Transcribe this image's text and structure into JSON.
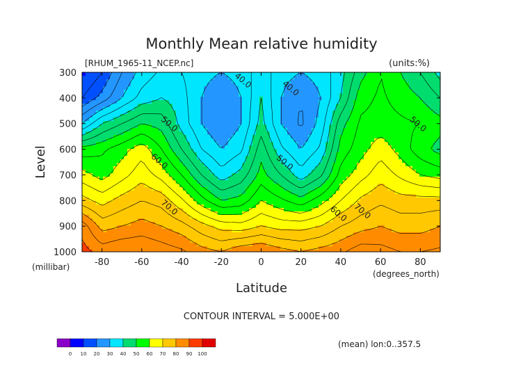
{
  "chart_data": {
    "type": "heatmap",
    "title": "Monthly Mean relative humidity",
    "subtitle_left": "[RHUM_1965-11_NCEP.nc]",
    "subtitle_right": "(units:%)",
    "xlabel": "Latitude",
    "xunit": "(degrees_north)",
    "ylabel": "Level",
    "yunit": "(millibar)",
    "x_ticks": [
      -80,
      -60,
      -40,
      -20,
      0,
      20,
      40,
      60,
      80
    ],
    "y_ticks": [
      300,
      400,
      500,
      600,
      700,
      800,
      900,
      1000
    ],
    "xlim": [
      -90,
      90
    ],
    "ylim": [
      1000,
      300
    ],
    "contour_interval_text": "CONTOUR INTERVAL = 5.000E+00",
    "mean_note": "(mean) lon:0..357.5",
    "colorbar": {
      "ticks": [
        0,
        10,
        20,
        30,
        40,
        50,
        60,
        70,
        80,
        90,
        100
      ],
      "colors": [
        "#8a00c8",
        "#0000ff",
        "#0050ff",
        "#2496ff",
        "#00e6ff",
        "#00dc6e",
        "#00ff00",
        "#ffff00",
        "#ffc800",
        "#ff8c00",
        "#ff3c00",
        "#e00000"
      ]
    },
    "contour_labels": [
      {
        "text": "40.0",
        "lat": -10,
        "lev": 340
      },
      {
        "text": "40.0",
        "lat": 14,
        "lev": 370
      },
      {
        "text": "50.0",
        "lat": -47,
        "lev": 510
      },
      {
        "text": "50.0",
        "lat": 11,
        "lev": 660
      },
      {
        "text": "50.0",
        "lat": 78,
        "lev": 510
      },
      {
        "text": "60.0",
        "lat": -52,
        "lev": 655
      },
      {
        "text": "60.0",
        "lat": 38,
        "lev": 860
      },
      {
        "text": "70.0",
        "lat": -47,
        "lev": 835
      },
      {
        "text": "70.0",
        "lat": 50,
        "lev": 850
      }
    ],
    "grid_lat": [
      -90,
      -80,
      -70,
      -60,
      -50,
      -40,
      -30,
      -20,
      -10,
      0,
      10,
      20,
      30,
      40,
      50,
      60,
      70,
      80,
      90
    ],
    "grid_lev": [
      300,
      400,
      500,
      600,
      700,
      800,
      900,
      1000
    ],
    "values": [
      [
        8,
        15,
        25,
        32,
        36,
        35,
        32,
        30,
        32,
        38,
        32,
        30,
        32,
        38,
        48,
        55,
        50,
        45,
        38
      ],
      [
        15,
        22,
        30,
        37,
        40,
        37,
        30,
        25,
        30,
        40,
        30,
        25,
        30,
        40,
        53,
        56,
        53,
        50,
        45
      ],
      [
        30,
        40,
        45,
        50,
        48,
        38,
        30,
        25,
        30,
        42,
        30,
        24,
        32,
        48,
        56,
        57,
        56,
        55,
        52
      ],
      [
        52,
        54,
        58,
        63,
        55,
        45,
        35,
        30,
        34,
        48,
        36,
        30,
        36,
        52,
        58,
        63,
        58,
        52,
        48
      ],
      [
        62,
        58,
        63,
        68,
        63,
        55,
        45,
        37,
        42,
        52,
        45,
        37,
        44,
        57,
        63,
        68,
        64,
        60,
        58
      ],
      [
        72,
        68,
        72,
        75,
        73,
        66,
        57,
        50,
        52,
        60,
        56,
        52,
        58,
        65,
        71,
        74,
        72,
        72,
        72
      ],
      [
        88,
        78,
        80,
        82,
        80,
        77,
        72,
        68,
        67,
        70,
        68,
        68,
        70,
        75,
        78,
        80,
        78,
        78,
        80
      ],
      [
        92,
        88,
        90,
        90,
        88,
        86,
        82,
        80,
        84,
        85,
        82,
        80,
        82,
        84,
        88,
        87,
        85,
        85,
        86
      ]
    ]
  }
}
